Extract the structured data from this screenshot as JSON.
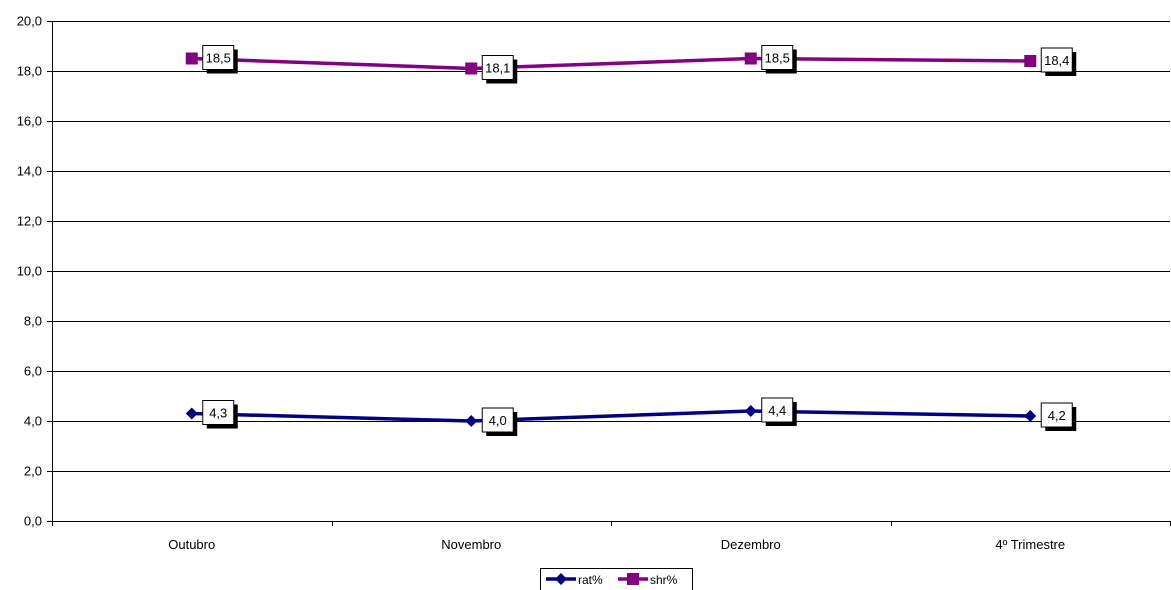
{
  "chart_data": {
    "type": "line",
    "categories": [
      "Outubro",
      "Novembro",
      "Dezembro",
      "4º Trimestre"
    ],
    "series": [
      {
        "name": "rat%",
        "values": [
          4.3,
          4.0,
          4.4,
          4.2
        ],
        "labels": [
          "4,3",
          "4,0",
          "4,4",
          "4,2"
        ],
        "color": "#000080",
        "marker": "diamond"
      },
      {
        "name": "shr%",
        "values": [
          18.5,
          18.1,
          18.5,
          18.4
        ],
        "labels": [
          "18,5",
          "18,1",
          "18,5",
          "18,4"
        ],
        "color": "#800080",
        "marker": "square"
      }
    ],
    "ylim": [
      0,
      20
    ],
    "yticks": [
      0,
      2,
      4,
      6,
      8,
      10,
      12,
      14,
      16,
      18,
      20
    ],
    "ytick_labels": [
      "0,0",
      "2,0",
      "4,0",
      "6,0",
      "8,0",
      "10,0",
      "12,0",
      "14,0",
      "16,0",
      "18,0",
      "20,0"
    ],
    "grid": true,
    "legend_position": "bottom-center"
  }
}
